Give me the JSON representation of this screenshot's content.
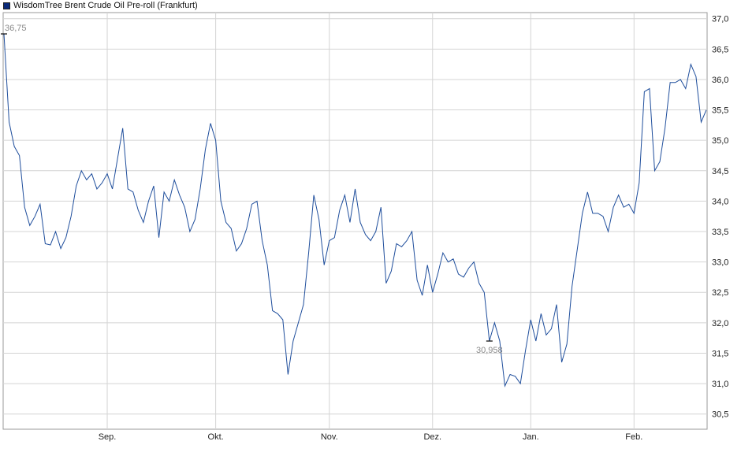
{
  "colors": {
    "line": "#1f4e9c",
    "grid": "#d4d4d4",
    "plot_border": "#9a9a9a",
    "annotation": "#8a8a8a"
  },
  "legend": {
    "label": "WisdomTree Brent Crude Oil Pre-roll (Frankfurt)"
  },
  "chart_data": {
    "type": "line",
    "title": "",
    "xlabel": "",
    "ylabel": "",
    "ylim": [
      30.25,
      37.1
    ],
    "y_ticks": [
      "37,0",
      "36,5",
      "36,0",
      "35,5",
      "35,0",
      "34,5",
      "34,0",
      "33,5",
      "33,0",
      "32,5",
      "32,0",
      "31,5",
      "31,0",
      "30,5"
    ],
    "y_tick_values": [
      37.0,
      36.5,
      36.0,
      35.5,
      35.0,
      34.5,
      34.0,
      33.5,
      33.0,
      32.5,
      32.0,
      31.5,
      31.0,
      30.5
    ],
    "x_ticks": [
      "Sep.",
      "Okt.",
      "Nov.",
      "Dez.",
      "Jan.",
      "Feb."
    ],
    "x_tick_index": [
      20,
      41,
      63,
      83,
      102,
      122
    ],
    "grid": true,
    "legend_position": "top-left",
    "annotations": {
      "max_label": "36,75",
      "max_index": 0,
      "min_label": "30,958",
      "min_index": 94
    },
    "series": [
      {
        "name": "WisdomTree Brent Crude Oil Pre-roll (Frankfurt)",
        "values": [
          36.75,
          35.3,
          34.9,
          34.75,
          33.9,
          33.6,
          33.75,
          33.95,
          33.3,
          33.28,
          33.5,
          33.22,
          33.4,
          33.75,
          34.25,
          34.5,
          34.35,
          34.45,
          34.2,
          34.3,
          34.45,
          34.2,
          34.7,
          35.2,
          34.2,
          34.15,
          33.85,
          33.65,
          34.0,
          34.25,
          33.4,
          34.15,
          34.0,
          34.35,
          34.1,
          33.9,
          33.5,
          33.7,
          34.2,
          34.85,
          35.28,
          35.0,
          34.0,
          33.65,
          33.55,
          33.18,
          33.3,
          33.55,
          33.95,
          34.0,
          33.35,
          32.95,
          32.2,
          32.15,
          32.05,
          31.15,
          31.7,
          32.0,
          32.3,
          33.15,
          34.1,
          33.7,
          32.95,
          33.35,
          33.4,
          33.85,
          34.1,
          33.65,
          34.2,
          33.65,
          33.45,
          33.35,
          33.5,
          33.9,
          32.65,
          32.85,
          33.3,
          33.25,
          33.35,
          33.5,
          32.7,
          32.45,
          32.95,
          32.5,
          32.8,
          33.15,
          33.0,
          33.05,
          32.8,
          32.75,
          32.9,
          33.0,
          32.65,
          32.5,
          31.7,
          32.0,
          31.7,
          30.96,
          31.15,
          31.12,
          31.0,
          31.55,
          32.05,
          31.7,
          32.15,
          31.8,
          31.9,
          32.3,
          31.35,
          31.65,
          32.6,
          33.2,
          33.8,
          34.15,
          33.8,
          33.8,
          33.75,
          33.5,
          33.9,
          34.1,
          33.9,
          33.95,
          33.8,
          34.3,
          35.8,
          35.85,
          34.5,
          34.65,
          35.2,
          35.95,
          35.95,
          36.0,
          35.85,
          36.25,
          36.05,
          35.3,
          35.5
        ]
      }
    ]
  }
}
